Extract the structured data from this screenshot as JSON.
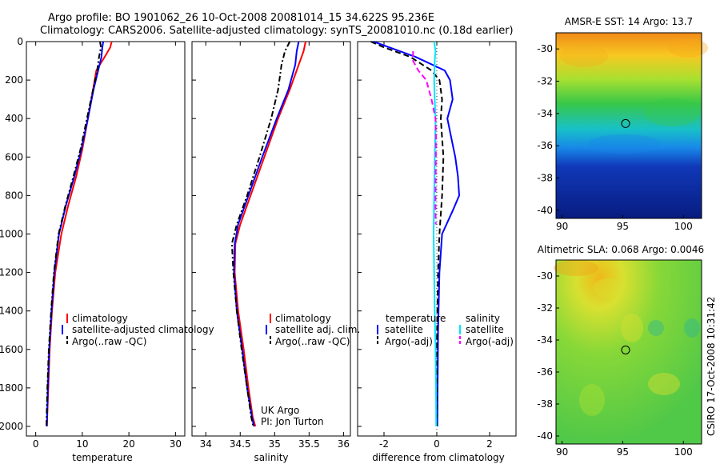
{
  "header": {
    "title_line1": "Argo profile: BO 1901062_26 10-Oct-2008 20081014_15 34.622S 95.236E",
    "title_line2": "Climatology: CARS2006. Satellite-adjusted climatology: synTS_20081010.nc (0.18d earlier)"
  },
  "colors": {
    "climatology": "#ff0000",
    "satellite": "#0000ff",
    "argo": "#000000",
    "satellite_salinity": "#00e5ff",
    "argo_adj_salinity": "#ff00ff"
  },
  "annotations": {
    "source_line1": "UK Argo",
    "source_line2": "PI: Jon Turton",
    "side_credit": "CSIRO 17-Oct-2008 10:31:42"
  },
  "maps": {
    "sst": {
      "title": "AMSR-E SST: 14 Argo: 13.7",
      "yticks": [
        "-30",
        "-32",
        "-34",
        "-36",
        "-38",
        "-40"
      ],
      "xticks": [
        "90",
        "95",
        "100"
      ],
      "marker_lon": 95.236,
      "marker_lat": -34.622
    },
    "sla": {
      "title": "Altimetric SLA: 0.068 Argo: 0.0046",
      "yticks": [
        "-30",
        "-32",
        "-34",
        "-36",
        "-38",
        "-40"
      ],
      "xticks": [
        "90",
        "95",
        "100"
      ],
      "marker_lon": 95.236,
      "marker_lat": -34.622
    }
  },
  "chart_data": [
    {
      "type": "line",
      "xlabel": "temperature",
      "xlim": [
        -2,
        32
      ],
      "ylim": [
        2050,
        0
      ],
      "xticks": [
        "0",
        "10",
        "20",
        "30"
      ],
      "yticks": [
        "0",
        "200",
        "400",
        "600",
        "800",
        "1000",
        "1200",
        "1400",
        "1600",
        "1800",
        "2000"
      ],
      "legend": [
        "climatology",
        "satellite-adjusted climatology",
        "Argo(..raw -QC)"
      ],
      "series": [
        {
          "name": "climatology",
          "color": "#ff0000",
          "style": "solid",
          "x": [
            16.3,
            16.0,
            14.8,
            13.0,
            12.3,
            11.2,
            10.0,
            8.7,
            7.0,
            5.5,
            4.2,
            3.5,
            3.0,
            2.7,
            2.4
          ],
          "y": [
            0,
            30,
            80,
            150,
            250,
            400,
            560,
            700,
            850,
            1000,
            1200,
            1400,
            1600,
            1800,
            2000
          ]
        },
        {
          "name": "satellite-adjusted climatology",
          "color": "#0000ff",
          "style": "solid",
          "x": [
            14.5,
            14.3,
            14.1,
            13.4,
            12.4,
            11.2,
            9.8,
            8.3,
            6.5,
            5.0,
            4.0,
            3.4,
            2.9,
            2.6,
            2.4
          ],
          "y": [
            0,
            30,
            80,
            150,
            250,
            400,
            560,
            700,
            850,
            1000,
            1200,
            1400,
            1600,
            1800,
            2000
          ]
        },
        {
          "name": "Argo(..raw -QC)",
          "color": "#000000",
          "style": "dashdot",
          "x": [
            13.8,
            14.0,
            13.6,
            13.2,
            12.3,
            11.0,
            9.6,
            8.1,
            6.4,
            4.9,
            3.9,
            3.3,
            2.8,
            2.5,
            2.3
          ],
          "y": [
            0,
            30,
            80,
            150,
            250,
            400,
            560,
            700,
            850,
            1000,
            1200,
            1400,
            1600,
            1800,
            2000
          ]
        }
      ]
    },
    {
      "type": "line",
      "xlabel": "salinity",
      "xlim": [
        33.8,
        36.1
      ],
      "ylim": [
        2050,
        0
      ],
      "xticks": [
        "34",
        "34.5",
        "35",
        "35.5",
        "36"
      ],
      "yticks": [],
      "legend": [
        "climatology",
        "satellite adj. clim.",
        "Argo(..raw -QC)"
      ],
      "series": [
        {
          "name": "climatology",
          "color": "#ff0000",
          "style": "solid",
          "x": [
            35.45,
            35.42,
            35.35,
            35.22,
            35.05,
            34.85,
            34.65,
            34.5,
            34.43,
            34.42,
            34.47,
            34.55,
            34.62,
            34.68,
            34.72
          ],
          "y": [
            0,
            50,
            120,
            250,
            400,
            600,
            800,
            950,
            1050,
            1200,
            1400,
            1600,
            1800,
            1950,
            2000
          ]
        },
        {
          "name": "satellite adj. clim.",
          "color": "#0000ff",
          "style": "solid",
          "x": [
            35.35,
            35.32,
            35.3,
            35.2,
            35.03,
            34.82,
            34.62,
            34.47,
            34.42,
            34.41,
            34.45,
            34.53,
            34.6,
            34.67,
            34.7
          ],
          "y": [
            0,
            50,
            120,
            250,
            400,
            600,
            800,
            950,
            1050,
            1200,
            1400,
            1600,
            1800,
            1950,
            2000
          ]
        },
        {
          "name": "Argo(..raw -QC)",
          "color": "#000000",
          "style": "dashdot",
          "x": [
            35.22,
            35.15,
            35.1,
            35.05,
            34.95,
            34.78,
            34.6,
            34.45,
            34.38,
            34.4,
            34.45,
            34.52,
            34.6,
            34.66,
            34.69
          ],
          "y": [
            0,
            50,
            120,
            250,
            400,
            600,
            800,
            950,
            1050,
            1200,
            1400,
            1600,
            1800,
            1950,
            2000
          ]
        }
      ]
    },
    {
      "type": "line",
      "xlabel": "difference from climatology",
      "xlim": [
        -3,
        3
      ],
      "ylim": [
        2050,
        0
      ],
      "xticks": [
        "-2",
        "0",
        "2"
      ],
      "yticks": [],
      "legend_groups": {
        "temperature": [
          "satellite",
          "Argo(-adj)"
        ],
        "salinity": [
          "satellite",
          "Argo(-adj)"
        ]
      },
      "group_titles": [
        "temperature",
        "salinity"
      ],
      "series": [
        {
          "name": "satellite",
          "group": "temperature",
          "color": "#0000ff",
          "style": "solid",
          "x": [
            -2.4,
            -1.8,
            -0.8,
            0.3,
            0.5,
            0.6,
            0.4,
            0.55,
            0.7,
            0.8,
            0.85,
            0.6,
            0.2,
            0.1,
            0.05,
            0.03,
            0.02
          ],
          "y": [
            0,
            30,
            80,
            150,
            200,
            300,
            400,
            500,
            600,
            700,
            800,
            880,
            1000,
            1200,
            1500,
            1800,
            2000
          ]
        },
        {
          "name": "Argo(-adj)",
          "group": "temperature",
          "color": "#000000",
          "style": "dashed",
          "x": [
            -2.5,
            -2.0,
            -1.0,
            -0.2,
            0.1,
            0.2,
            0.15,
            0.2,
            0.25,
            0.2,
            0.1,
            0.05,
            0.02,
            0.0,
            0.0,
            0.0
          ],
          "y": [
            0,
            30,
            80,
            150,
            200,
            300,
            400,
            500,
            600,
            800,
            1000,
            1200,
            1400,
            1600,
            1800,
            2000
          ]
        },
        {
          "name": "satellite",
          "group": "salinity",
          "color": "#00e5ff",
          "style": "solid",
          "x": [
            -0.1,
            -0.05,
            -0.08,
            -0.1,
            -0.08,
            -0.05,
            -0.06,
            -0.08,
            -0.1,
            -0.12,
            -0.1,
            -0.08,
            -0.05,
            -0.03,
            -0.02
          ],
          "y": [
            0,
            50,
            100,
            200,
            300,
            400,
            500,
            600,
            800,
            1000,
            1200,
            1400,
            1600,
            1800,
            2000
          ]
        },
        {
          "name": "Argo(-adj)",
          "group": "salinity",
          "color": "#ff00ff",
          "style": "dashed",
          "x": [
            -0.9,
            -0.9,
            -0.7,
            -0.4,
            -0.2,
            -0.05,
            -0.03,
            -0.05,
            -0.05,
            -0.04
          ],
          "y": [
            50,
            100,
            150,
            200,
            300,
            400,
            500,
            800,
            900,
            950
          ]
        }
      ]
    }
  ]
}
